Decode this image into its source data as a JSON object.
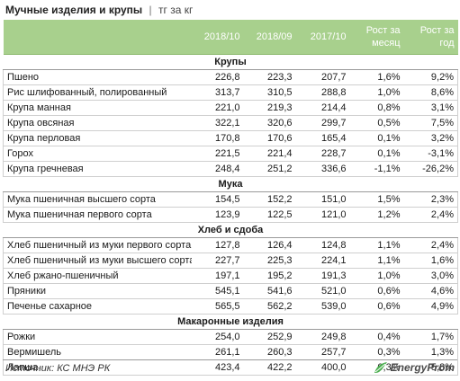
{
  "header": {
    "title": "Мучные изделия и крупы",
    "separator": "|",
    "unit": "тг за кг"
  },
  "columns": {
    "col1": "2018/10",
    "col2": "2018/09",
    "col3": "2017/10",
    "col4": "Рост за месяц",
    "col5": "Рост за год"
  },
  "sections": [
    {
      "name": "Крупы",
      "rows": [
        {
          "name": "Пшено",
          "v1": "226,8",
          "v2": "223,3",
          "v3": "207,7",
          "m": "1,6%",
          "y": "9,2%"
        },
        {
          "name": "Рис шлифованный, полированный",
          "v1": "313,7",
          "v2": "310,5",
          "v3": "288,8",
          "m": "1,0%",
          "y": "8,6%"
        },
        {
          "name": "Крупа манная",
          "v1": "221,0",
          "v2": "219,3",
          "v3": "214,4",
          "m": "0,8%",
          "y": "3,1%"
        },
        {
          "name": "Крупа овсяная",
          "v1": "322,1",
          "v2": "320,6",
          "v3": "299,7",
          "m": "0,5%",
          "y": "7,5%"
        },
        {
          "name": "Крупа перловая",
          "v1": "170,8",
          "v2": "170,6",
          "v3": "165,4",
          "m": "0,1%",
          "y": "3,2%"
        },
        {
          "name": "Горох",
          "v1": "221,5",
          "v2": "221,4",
          "v3": "228,7",
          "m": "0,1%",
          "y": "-3,1%"
        },
        {
          "name": "Крупа гречневая",
          "v1": "248,4",
          "v2": "251,2",
          "v3": "336,6",
          "m": "-1,1%",
          "y": "-26,2%"
        }
      ]
    },
    {
      "name": "Мука",
      "rows": [
        {
          "name": "Мука пшеничная высшего сорта",
          "v1": "154,5",
          "v2": "152,2",
          "v3": "151,0",
          "m": "1,5%",
          "y": "2,3%"
        },
        {
          "name": "Мука пшеничная первого сорта",
          "v1": "123,9",
          "v2": "122,5",
          "v3": "121,0",
          "m": "1,2%",
          "y": "2,4%"
        }
      ]
    },
    {
      "name": "Хлеб и сдоба",
      "rows": [
        {
          "name": "Хлеб пшеничный из муки первого сорта",
          "v1": "127,8",
          "v2": "126,4",
          "v3": "124,8",
          "m": "1,1%",
          "y": "2,4%"
        },
        {
          "name": "Хлеб пшеничный из муки высшего сорта",
          "v1": "227,7",
          "v2": "225,3",
          "v3": "224,1",
          "m": "1,1%",
          "y": "1,6%"
        },
        {
          "name": "Хлеб ржано-пшеничный",
          "v1": "197,1",
          "v2": "195,2",
          "v3": "191,3",
          "m": "1,0%",
          "y": "3,0%"
        },
        {
          "name": "Пряники",
          "v1": "545,1",
          "v2": "541,6",
          "v3": "521,0",
          "m": "0,6%",
          "y": "4,6%"
        },
        {
          "name": "Печенье сахарное",
          "v1": "565,5",
          "v2": "562,2",
          "v3": "539,0",
          "m": "0,6%",
          "y": "4,9%"
        }
      ]
    },
    {
      "name": "Макаронные изделия",
      "rows": [
        {
          "name": "Рожки",
          "v1": "254,0",
          "v2": "252,9",
          "v3": "249,8",
          "m": "0,4%",
          "y": "1,7%"
        },
        {
          "name": "Вермишель",
          "v1": "261,1",
          "v2": "260,3",
          "v3": "257,7",
          "m": "0,3%",
          "y": "1,3%"
        },
        {
          "name": "Лапша",
          "v1": "423,4",
          "v2": "422,2",
          "v3": "400,0",
          "m": "0,3%",
          "y": "5,8%"
        }
      ]
    }
  ],
  "footer": {
    "source": "Источник: КС МНЭ РК",
    "logo_text": "EnergyProm",
    "logo_icon": "leaf-logo-icon"
  }
}
